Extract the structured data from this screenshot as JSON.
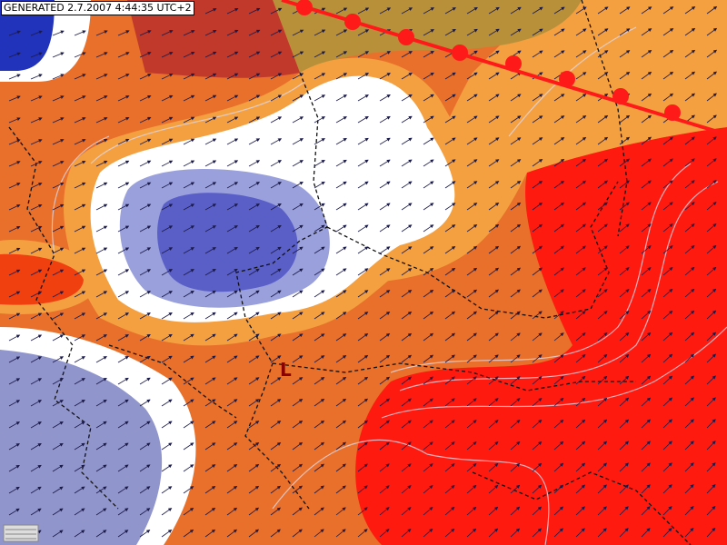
{
  "header": {
    "generated": "GENERATED 2.7.2007 4:44:35 UTC+2"
  },
  "map": {
    "low_label": "L"
  }
}
